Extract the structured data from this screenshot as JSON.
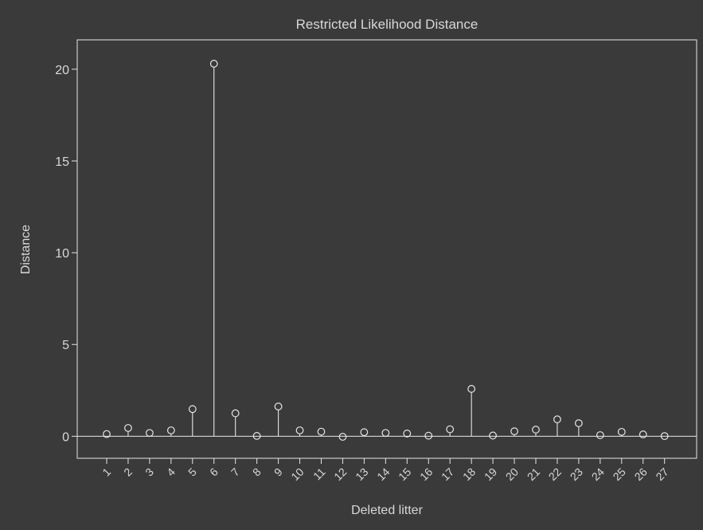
{
  "chart_data": {
    "type": "scatter",
    "style": "needle",
    "title": "Restricted Likelihood Distance",
    "xlabel": "Deleted litter",
    "ylabel": "Distance",
    "ylim": [
      -1.2,
      21.6
    ],
    "yticks": [
      0,
      5,
      10,
      15,
      20
    ],
    "categories": [
      "1",
      "2",
      "3",
      "4",
      "5",
      "6",
      "7",
      "8",
      "9",
      "10",
      "11",
      "12",
      "13",
      "14",
      "15",
      "16",
      "17",
      "18",
      "19",
      "20",
      "21",
      "22",
      "23",
      "24",
      "25",
      "26",
      "27"
    ],
    "values": [
      0.12,
      0.45,
      0.18,
      0.32,
      1.48,
      20.3,
      1.25,
      0.02,
      1.62,
      0.32,
      0.25,
      -0.03,
      0.22,
      0.18,
      0.15,
      0.03,
      0.38,
      2.58,
      0.04,
      0.27,
      0.36,
      0.92,
      0.71,
      0.06,
      0.24,
      0.1,
      0.01
    ],
    "baseline": 0,
    "grid": false,
    "colors": {
      "background": "#3a3a3a",
      "foreground": "#e6e6e6",
      "text": "#d8d8d8"
    }
  }
}
